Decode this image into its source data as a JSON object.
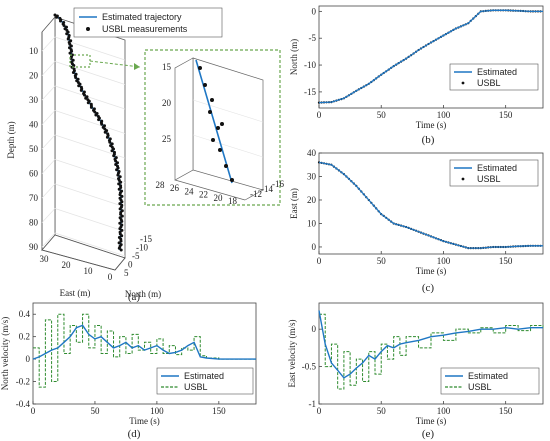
{
  "colors": {
    "estimated": "#1f77c4",
    "usbl_dots": "#111111",
    "usbl_velocity": "#2e8b2e",
    "zoom_box": "#6aa84f"
  },
  "chart_data": [
    {
      "panel": "(a)",
      "type": "scatter-3d",
      "zlabel": "Depth (m)",
      "xlabel": "East (m)",
      "ylabel": "North (m)",
      "zticks": [
        "10",
        "20",
        "30",
        "40",
        "50",
        "60",
        "70",
        "80",
        "90"
      ],
      "xticks": [
        "30",
        "20",
        "10",
        "0"
      ],
      "yticks": [
        "-15",
        "-10",
        "-5",
        "0",
        "5"
      ],
      "legend": [
        "Estimated trajectory",
        "USBL measurements"
      ],
      "inset": {
        "zticks": [
          "15",
          "20",
          "25"
        ],
        "xticks": [
          "28",
          "26",
          "24",
          "22",
          "20",
          "18"
        ],
        "yticks": [
          "-12",
          "-14",
          "-16"
        ]
      }
    },
    {
      "panel": "(b)",
      "type": "line",
      "xlabel": "Time (s)",
      "ylabel": "North (m)",
      "xlim": [
        0,
        180
      ],
      "ylim": [
        -18,
        1
      ],
      "xticks": [
        "0",
        "50",
        "100",
        "150"
      ],
      "yticks": [
        "0",
        "-5",
        "-10",
        "-15"
      ],
      "legend": [
        "Estimated",
        "USBL"
      ],
      "series": [
        {
          "name": "Estimated",
          "x": [
            0,
            10,
            20,
            30,
            40,
            50,
            60,
            70,
            80,
            90,
            100,
            110,
            120,
            130,
            140,
            150,
            160,
            170,
            180
          ],
          "values": [
            -17,
            -16.9,
            -16.2,
            -14.8,
            -13.5,
            -11.8,
            -10.2,
            -8.8,
            -7.2,
            -5.8,
            -4.5,
            -3.2,
            -2.2,
            0,
            0.2,
            0.2,
            0.1,
            0,
            0
          ]
        }
      ]
    },
    {
      "panel": "(c)",
      "type": "line",
      "xlabel": "Time (s)",
      "ylabel": "East (m)",
      "xlim": [
        0,
        180
      ],
      "ylim": [
        -3,
        40
      ],
      "xticks": [
        "0",
        "50",
        "100",
        "150"
      ],
      "yticks": [
        "0",
        "10",
        "20",
        "30",
        "40"
      ],
      "legend": [
        "Estimated",
        "USBL"
      ],
      "series": [
        {
          "name": "Estimated",
          "x": [
            0,
            10,
            20,
            30,
            40,
            50,
            60,
            70,
            80,
            90,
            100,
            110,
            120,
            130,
            140,
            150,
            160,
            170,
            180
          ],
          "values": [
            36,
            35,
            31,
            26,
            20,
            14,
            10,
            8.5,
            6.5,
            4.5,
            2.5,
            1,
            -0.5,
            -0.5,
            0,
            0,
            0.3,
            0.5,
            0.5
          ]
        }
      ]
    },
    {
      "panel": "(d)",
      "type": "line",
      "xlabel": "Time (s)",
      "ylabel": "North velocity (m/s)",
      "xlim": [
        0,
        180
      ],
      "ylim": [
        -0.4,
        0.5
      ],
      "xticks": [
        "0",
        "50",
        "100",
        "150"
      ],
      "yticks": [
        "0.4",
        "0.2",
        "0",
        "-0.2",
        "-0.4"
      ],
      "legend": [
        "Estimated",
        "USBL"
      ],
      "series": [
        {
          "name": "Estimated",
          "x": [
            0,
            5,
            10,
            15,
            20,
            25,
            30,
            35,
            40,
            45,
            50,
            55,
            60,
            65,
            70,
            75,
            80,
            85,
            90,
            95,
            100,
            105,
            110,
            115,
            120,
            125,
            130,
            135,
            140,
            150,
            160,
            170,
            180
          ],
          "values": [
            0,
            0.02,
            0.05,
            0.08,
            0.1,
            0.15,
            0.2,
            0.28,
            0.3,
            0.22,
            0.18,
            0.2,
            0.15,
            0.1,
            0.12,
            0.15,
            0.1,
            0.12,
            0.08,
            0.1,
            0.12,
            0.08,
            0.05,
            0.06,
            0.08,
            0.12,
            0.15,
            0.02,
            0.01,
            0,
            0,
            0,
            0
          ]
        },
        {
          "name": "USBL",
          "x": [
            0,
            5,
            10,
            15,
            20,
            25,
            30,
            35,
            40,
            45,
            50,
            55,
            60,
            65,
            70,
            75,
            80,
            85,
            90,
            95,
            100,
            105,
            110,
            115,
            120,
            125,
            130,
            135,
            140,
            150,
            160,
            170,
            180
          ],
          "values": [
            0.1,
            -0.25,
            0.35,
            -0.2,
            0.4,
            0.05,
            0.3,
            0.15,
            0.4,
            0.1,
            0.3,
            0.05,
            0.25,
            0.02,
            0.2,
            0.05,
            0.22,
            0.08,
            0.15,
            0.05,
            0.18,
            0.05,
            0.12,
            0.04,
            0.1,
            0.08,
            0.2,
            0.03,
            0.01,
            0,
            0,
            0,
            0
          ]
        }
      ]
    },
    {
      "panel": "(e)",
      "type": "line",
      "xlabel": "Time (s)",
      "ylabel": "East velocity (m/s)",
      "xlim": [
        0,
        180
      ],
      "ylim": [
        -1,
        0.35
      ],
      "xticks": [
        "0",
        "50",
        "100",
        "150"
      ],
      "yticks": [
        "0",
        "-0.5",
        "-1"
      ],
      "legend": [
        "Estimated",
        "USBL"
      ],
      "series": [
        {
          "name": "Estimated",
          "x": [
            0,
            5,
            10,
            15,
            20,
            25,
            30,
            35,
            40,
            45,
            50,
            55,
            60,
            65,
            70,
            80,
            90,
            100,
            110,
            120,
            130,
            140,
            150,
            160,
            170,
            180
          ],
          "values": [
            0.25,
            -0.2,
            -0.45,
            -0.55,
            -0.65,
            -0.6,
            -0.52,
            -0.45,
            -0.35,
            -0.4,
            -0.3,
            -0.22,
            -0.25,
            -0.2,
            -0.18,
            -0.15,
            -0.1,
            -0.08,
            -0.05,
            -0.03,
            0,
            0,
            0.02,
            0,
            0.02,
            0.02
          ]
        },
        {
          "name": "USBL",
          "x": [
            0,
            5,
            10,
            15,
            20,
            25,
            30,
            35,
            40,
            45,
            50,
            55,
            60,
            65,
            70,
            80,
            90,
            100,
            110,
            120,
            130,
            140,
            150,
            160,
            170,
            180
          ],
          "values": [
            0.2,
            -0.5,
            -0.2,
            -0.8,
            -0.3,
            -0.75,
            -0.4,
            -0.7,
            -0.3,
            -0.6,
            -0.2,
            -0.4,
            -0.1,
            -0.35,
            -0.1,
            -0.25,
            -0.05,
            -0.15,
            0,
            -0.05,
            0.02,
            -0.05,
            0.05,
            -0.02,
            0.05,
            0.02
          ]
        }
      ]
    }
  ]
}
